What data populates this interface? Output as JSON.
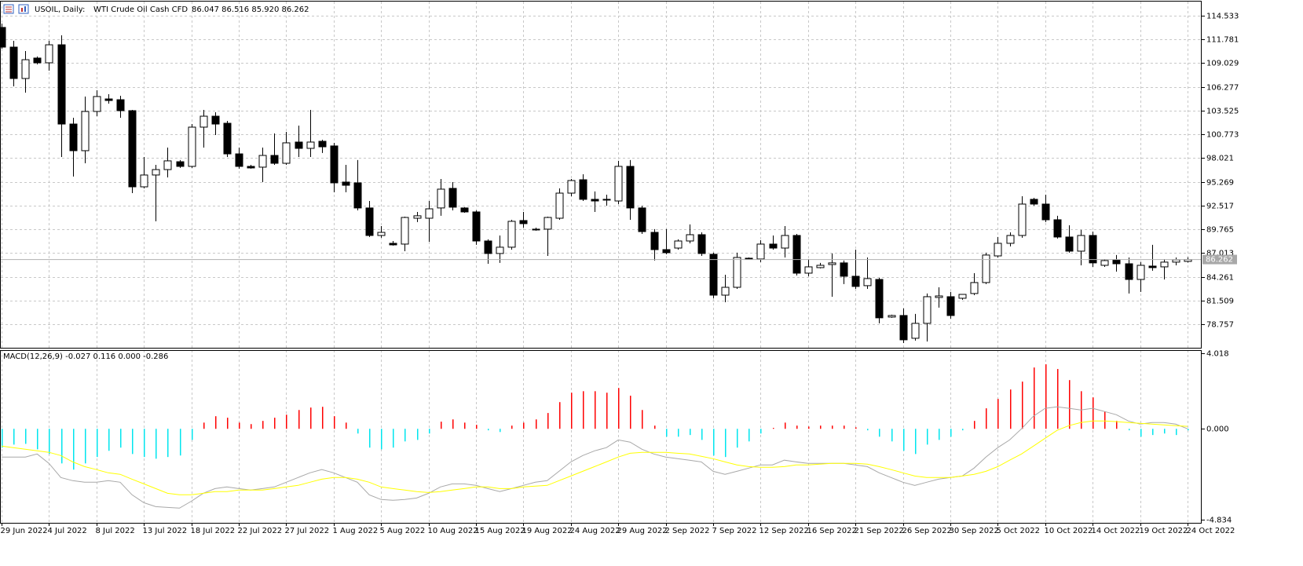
{
  "chart_data": {
    "type": "candlestick",
    "symbol": "USOIL, Daily:",
    "description": "WTI Crude Oil Cash CFD",
    "ohlc_text": "86.047 86.516 85.920 86.262",
    "categories": [
      "29 Jun 2022",
      null,
      null,
      null,
      "4 Jul 2022",
      null,
      null,
      null,
      "8 Jul 2022",
      null,
      null,
      null,
      "13 Jul 2022",
      null,
      null,
      null,
      "18 Jul 2022",
      null,
      null,
      null,
      "22 Jul 2022",
      null,
      null,
      null,
      "27 Jul 2022",
      null,
      null,
      null,
      "1 Aug 2022",
      null,
      null,
      null,
      "5 Aug 2022",
      null,
      null,
      null,
      "10 Aug 2022",
      null,
      null,
      null,
      "15 Aug 2022",
      null,
      null,
      null,
      "19 Aug 2022",
      null,
      null,
      null,
      "24 Aug 2022",
      null,
      null,
      null,
      "29 Aug 2022",
      null,
      null,
      null,
      "2 Sep 2022",
      null,
      null,
      null,
      "7 Sep 2022",
      null,
      null,
      null,
      "12 Sep 2022",
      null,
      null,
      null,
      "16 Sep 2022",
      null,
      null,
      null,
      "21 Sep 2022",
      null,
      null,
      null,
      "26 Sep 2022",
      null,
      null,
      null,
      "30 Sep 2022",
      null,
      null,
      null,
      "5 Oct 2022",
      null,
      null,
      null,
      "10 Oct 2022",
      null,
      null,
      null,
      "14 Oct 2022",
      null,
      null,
      null,
      "19 Oct 2022",
      null,
      null,
      null,
      "24 Oct 2022"
    ],
    "open": [
      113.17,
      110.89,
      107.25,
      109.62,
      109.07,
      111.16,
      101.97,
      98.88,
      103.43,
      104.88,
      104.79,
      103.52,
      94.69,
      96.06,
      96.69,
      97.6,
      97.06,
      101.61,
      102.88,
      102.06,
      98.51,
      97.06,
      96.97,
      98.33,
      97.42,
      99.88,
      99.15,
      99.97,
      99.43,
      95.24,
      95.15,
      92.24,
      89.05,
      88.14,
      88.05,
      91.05,
      91.05,
      92.24,
      94.51,
      92.24,
      91.78,
      88.41,
      86.96,
      87.69,
      90.78,
      89.78,
      89.78,
      91.05,
      93.96,
      95.51,
      93.24,
      93.24,
      93.05,
      97.06,
      92.24,
      89.41,
      87.41,
      87.59,
      88.41,
      89.14,
      86.87,
      82.13,
      83.04,
      86.32,
      86.32,
      88.05,
      87.59,
      89.05,
      84.68,
      85.32,
      85.68,
      85.87,
      84.32,
      83.23,
      83.95,
      79.59,
      79.77,
      77.13,
      78.86,
      81.86,
      81.95,
      81.77,
      82.32,
      83.59,
      86.68,
      88.14,
      89.05,
      93.24,
      92.69,
      90.87,
      88.87,
      87.23,
      89.05,
      85.59,
      86.23,
      85.77,
      83.95,
      85.5,
      85.41,
      85.96,
      86.047
    ],
    "high": [
      113.62,
      111.62,
      110.44,
      109.8,
      111.62,
      112.26,
      102.7,
      105.16,
      105.89,
      105.43,
      105.25,
      103.61,
      98.15,
      97.24,
      99.24,
      97.79,
      101.97,
      103.61,
      103.34,
      102.34,
      99.24,
      97.24,
      99.24,
      100.88,
      101.06,
      101.79,
      103.61,
      100.15,
      99.79,
      97.24,
      97.79,
      93.05,
      90.14,
      88.41,
      91.23,
      91.78,
      93.05,
      95.6,
      95.24,
      92.33,
      91.96,
      88.6,
      89.05,
      90.87,
      91.78,
      89.96,
      91.23,
      94.51,
      95.6,
      96.15,
      94.15,
      93.78,
      97.7,
      97.79,
      92.51,
      89.78,
      89.78,
      88.6,
      90.33,
      89.41,
      87.05,
      84.5,
      87.05,
      86.5,
      88.5,
      89.05,
      90.14,
      89.23,
      86.32,
      85.87,
      86.96,
      86.14,
      87.41,
      86.5,
      84.14,
      79.86,
      80.59,
      79.95,
      82.32,
      83.04,
      82.5,
      82.22,
      84.68,
      87.05,
      88.87,
      89.41,
      93.6,
      93.42,
      93.78,
      91.33,
      90.23,
      89.69,
      89.5,
      86.32,
      86.78,
      86.5,
      85.96,
      87.96,
      86.32,
      86.5,
      86.516
    ],
    "low": [
      110.71,
      106.34,
      105.61,
      108.89,
      108.16,
      98.15,
      95.88,
      97.42,
      102.88,
      104.34,
      102.7,
      93.96,
      94.51,
      90.69,
      95.78,
      96.88,
      96.88,
      99.24,
      100.7,
      98.15,
      96.79,
      96.79,
      95.24,
      97.24,
      97.24,
      98.15,
      98.15,
      98.61,
      94.06,
      94.06,
      91.96,
      88.87,
      88.78,
      87.87,
      87.23,
      90.6,
      88.32,
      91.33,
      91.96,
      91.69,
      87.96,
      85.77,
      85.87,
      87.41,
      89.96,
      89.6,
      86.68,
      90.87,
      93.6,
      93.05,
      91.78,
      92.51,
      92.69,
      90.87,
      89.23,
      86.14,
      86.87,
      87.41,
      88.14,
      86.68,
      81.77,
      81.31,
      82.86,
      86.23,
      85.96,
      87.41,
      86.5,
      84.41,
      84.32,
      85.23,
      81.95,
      83.41,
      82.86,
      82.86,
      78.86,
      79.5,
      76.58,
      76.86,
      76.76,
      80.68,
      79.41,
      81.59,
      82.13,
      83.41,
      86.5,
      87.78,
      88.78,
      92.51,
      90.6,
      88.69,
      87.05,
      85.59,
      85.41,
      85.41,
      84.86,
      82.32,
      82.5,
      84.96,
      83.95,
      85.59,
      85.92
    ],
    "close": [
      110.89,
      107.25,
      109.43,
      109.07,
      111.16,
      101.97,
      98.88,
      103.43,
      105.16,
      104.7,
      103.52,
      94.69,
      96.06,
      96.69,
      97.7,
      97.06,
      101.61,
      102.88,
      101.97,
      98.51,
      97.06,
      96.88,
      98.33,
      97.42,
      99.79,
      99.15,
      99.88,
      99.33,
      95.15,
      94.87,
      92.24,
      89.05,
      89.41,
      87.96,
      91.14,
      91.33,
      92.14,
      94.42,
      92.33,
      91.78,
      88.41,
      86.96,
      87.69,
      90.69,
      90.42,
      89.69,
      91.14,
      93.96,
      95.42,
      93.24,
      93.05,
      93.15,
      97.06,
      92.24,
      89.5,
      87.41,
      87.05,
      88.41,
      89.14,
      86.96,
      82.13,
      83.04,
      86.5,
      86.41,
      88.05,
      87.59,
      89.05,
      84.68,
      85.41,
      85.59,
      85.87,
      84.32,
      83.14,
      84.05,
      79.5,
      79.77,
      76.95,
      78.86,
      81.95,
      82.04,
      79.77,
      82.22,
      83.59,
      86.78,
      88.14,
      89.05,
      92.69,
      92.69,
      90.87,
      88.87,
      87.23,
      89.05,
      85.87,
      86.14,
      85.77,
      83.95,
      85.59,
      85.32,
      85.96,
      86.23,
      86.262
    ],
    "up_color": "#ffffff",
    "down_color": "#000000",
    "ylim": [
      76.03,
      116.17
    ],
    "yticks": [
      78.757,
      81.509,
      84.261,
      87.013,
      89.765,
      92.517,
      95.269,
      98.021,
      100.773,
      103.525,
      106.277,
      109.029,
      111.781,
      114.533
    ],
    "grid": true,
    "indicator": {
      "type": "macd",
      "label": "MACD(12,26,9) -0.027 0.116 0.000 -0.286",
      "ylim": [
        -5.0,
        4.185
      ],
      "yticks": [
        -4.834,
        {
          "value": 0,
          "label": "0.000"
        },
        4.018
      ],
      "histogram": {
        "up_color": "#ff0000",
        "down_color": "#00e5ee",
        "values": [
          -1.0,
          -0.84,
          -0.8,
          -1.09,
          -1.34,
          -1.84,
          -2.17,
          -1.84,
          -1.5,
          -1.17,
          -1.0,
          -1.34,
          -1.5,
          -1.59,
          -1.5,
          -1.42,
          -0.59,
          0.33,
          0.67,
          0.59,
          0.33,
          0.25,
          0.42,
          0.59,
          0.75,
          1.0,
          1.13,
          1.17,
          0.67,
          0.33,
          -0.25,
          -1.0,
          -1.09,
          -1.0,
          -0.67,
          -0.59,
          -0.25,
          0.38,
          0.5,
          0.33,
          0.21,
          -0.08,
          -0.17,
          0.17,
          0.33,
          0.5,
          0.84,
          1.42,
          1.92,
          2.0,
          2.0,
          1.92,
          2.17,
          1.76,
          1.0,
          0.17,
          -0.42,
          -0.42,
          -0.33,
          -0.59,
          -1.42,
          -1.5,
          -1.0,
          -0.67,
          -0.25,
          0.05,
          0.33,
          0.17,
          0.12,
          0.17,
          0.17,
          0.17,
          0.08,
          -0.08,
          -0.42,
          -0.67,
          -1.17,
          -1.34,
          -0.84,
          -0.59,
          -0.42,
          -0.08,
          0.42,
          1.09,
          1.59,
          2.09,
          2.51,
          3.26,
          3.43,
          3.18,
          2.59,
          2.0,
          1.67,
          0.92,
          0.42,
          -0.08,
          -0.42,
          -0.33,
          -0.25,
          -0.33,
          -0.08
        ]
      },
      "series": [
        {
          "color": "#a8a8a8",
          "values": [
            -1.5,
            -1.5,
            -1.5,
            -1.34,
            -1.84,
            -2.59,
            -2.76,
            -2.84,
            -2.84,
            -2.76,
            -2.84,
            -3.51,
            -3.93,
            -4.14,
            -4.18,
            -4.22,
            -3.85,
            -3.43,
            -3.18,
            -3.09,
            -3.18,
            -3.26,
            -3.18,
            -3.09,
            -2.84,
            -2.59,
            -2.34,
            -2.17,
            -2.34,
            -2.59,
            -2.84,
            -3.51,
            -3.76,
            -3.8,
            -3.76,
            -3.68,
            -3.43,
            -3.09,
            -2.93,
            -2.93,
            -3.01,
            -3.18,
            -3.34,
            -3.18,
            -3.01,
            -2.84,
            -2.76,
            -2.26,
            -1.76,
            -1.42,
            -1.17,
            -1.0,
            -0.59,
            -0.71,
            -1.09,
            -1.34,
            -1.5,
            -1.59,
            -1.67,
            -1.76,
            -2.26,
            -2.42,
            -2.26,
            -2.09,
            -1.92,
            -1.92,
            -1.67,
            -1.76,
            -1.84,
            -1.84,
            -1.84,
            -1.84,
            -1.92,
            -2.01,
            -2.34,
            -2.59,
            -2.84,
            -3.01,
            -2.84,
            -2.68,
            -2.59,
            -2.51,
            -2.09,
            -1.5,
            -1.0,
            -0.59,
            0,
            0.67,
            1.09,
            1.17,
            1.09,
            1.0,
            1.09,
            0.92,
            0.75,
            0.42,
            0.25,
            0.33,
            0.33,
            0.25,
            0
          ]
        },
        {
          "color": "#ffff00",
          "values": [
            -0.92,
            -1.0,
            -1.09,
            -1.17,
            -1.25,
            -1.42,
            -1.76,
            -2.01,
            -2.17,
            -2.34,
            -2.42,
            -2.68,
            -2.93,
            -3.18,
            -3.43,
            -3.51,
            -3.51,
            -3.43,
            -3.34,
            -3.34,
            -3.26,
            -3.26,
            -3.26,
            -3.18,
            -3.09,
            -3.01,
            -2.84,
            -2.68,
            -2.59,
            -2.59,
            -2.68,
            -2.84,
            -3.09,
            -3.18,
            -3.26,
            -3.34,
            -3.39,
            -3.34,
            -3.26,
            -3.18,
            -3.09,
            -3.09,
            -3.18,
            -3.18,
            -3.09,
            -3.05,
            -3.01,
            -2.76,
            -2.51,
            -2.26,
            -2.01,
            -1.76,
            -1.5,
            -1.3,
            -1.25,
            -1.25,
            -1.25,
            -1.3,
            -1.34,
            -1.46,
            -1.59,
            -1.76,
            -1.92,
            -2.01,
            -2.05,
            -2.05,
            -2.01,
            -1.92,
            -1.92,
            -1.88,
            -1.84,
            -1.84,
            -1.84,
            -1.88,
            -2.01,
            -2.17,
            -2.34,
            -2.51,
            -2.59,
            -2.59,
            -2.59,
            -2.51,
            -2.42,
            -2.26,
            -2.01,
            -1.67,
            -1.34,
            -0.92,
            -0.5,
            -0.08,
            0.17,
            0.33,
            0.42,
            0.42,
            0.38,
            0.33,
            0.29,
            0.25,
            0.21,
            0.17,
            0.13
          ]
        }
      ]
    }
  }
}
